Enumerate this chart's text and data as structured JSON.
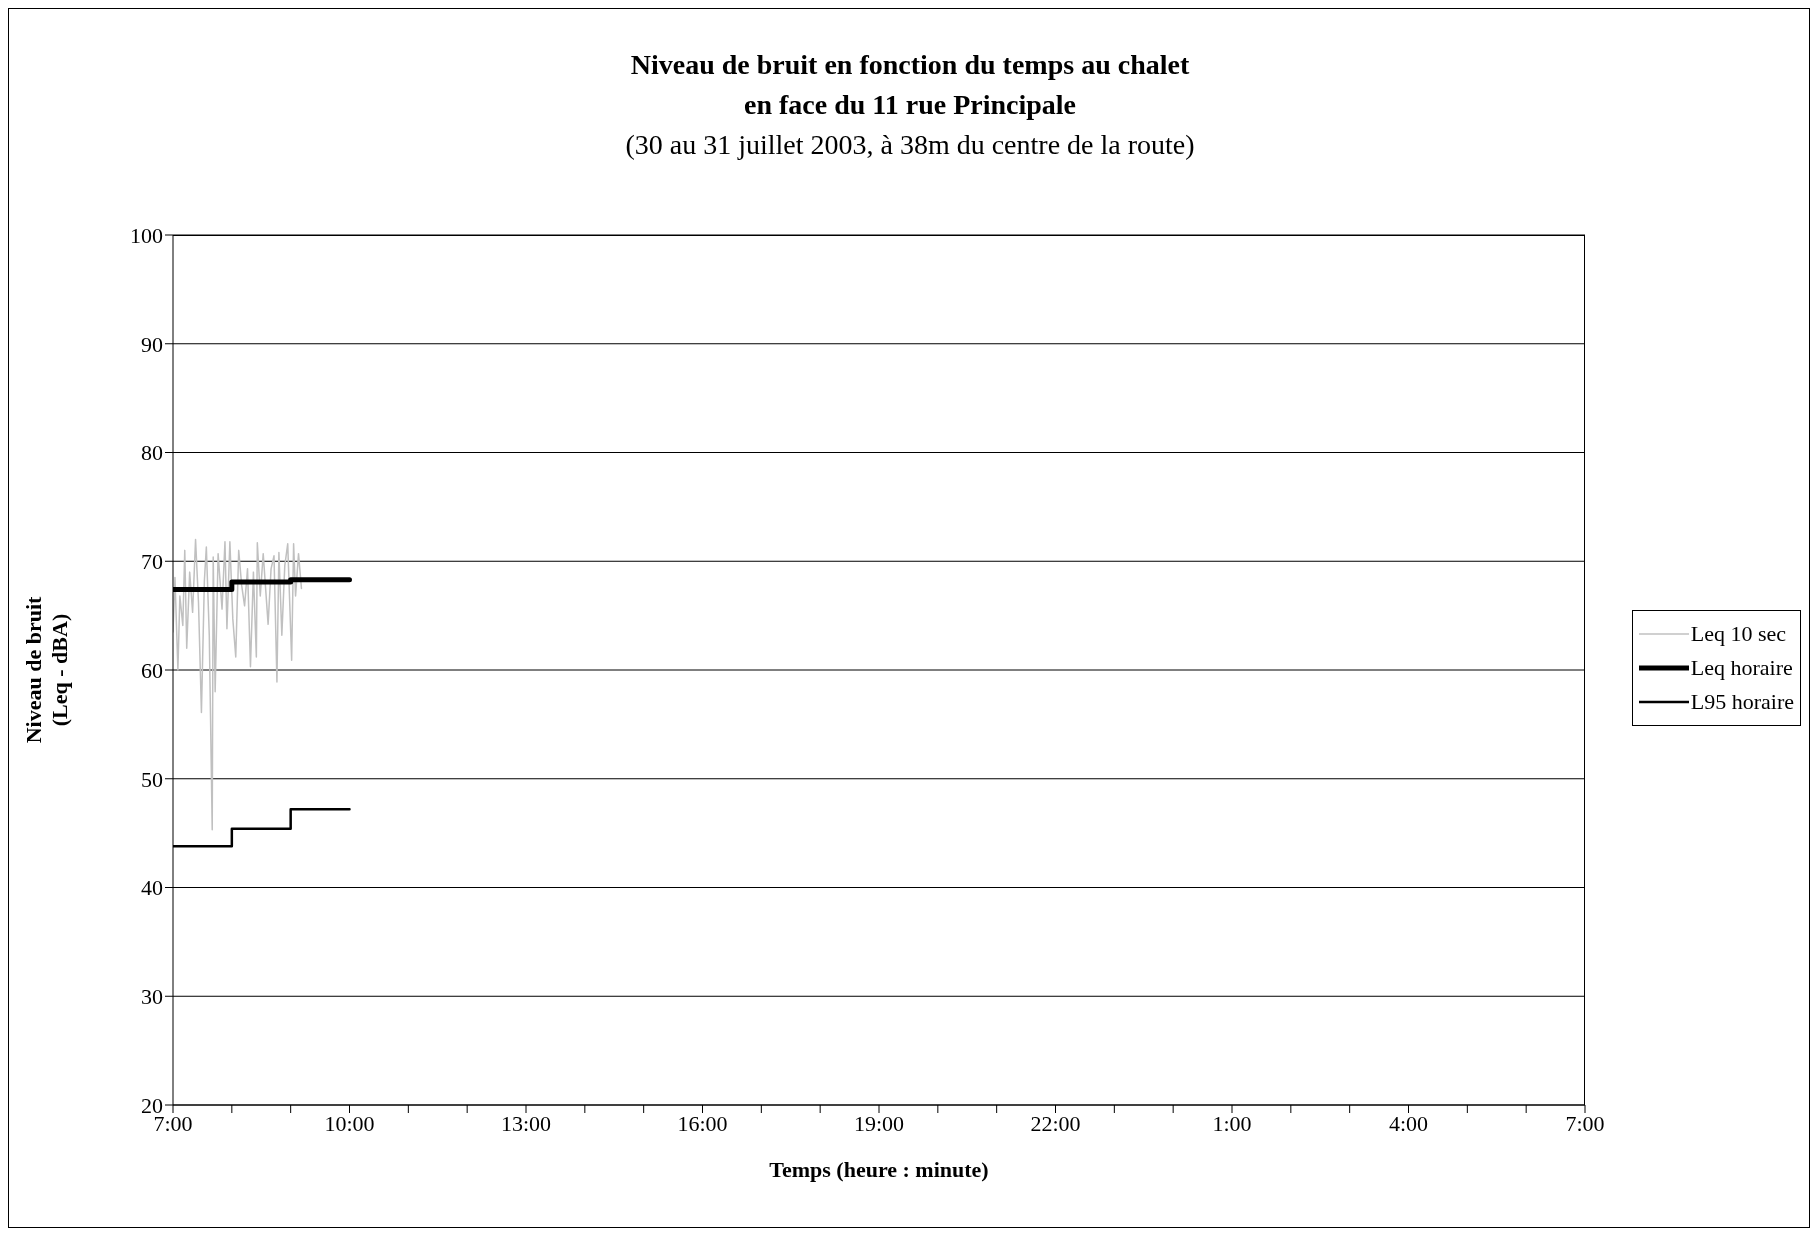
{
  "chart_data": {
    "type": "line",
    "title": "Niveau de bruit en fonction du temps au chalet\nen face du 11 rue Principale",
    "subtitle": "(30 au 31 juillet 2003, à 38m du centre de la route)",
    "xlabel": "Temps (heure : minute)",
    "ylabel": "Niveau de bruit\n(Leq - dBA)",
    "xlim": [
      "2003-07-30T07:00",
      "2003-07-31T07:00"
    ],
    "xticks": [
      {
        "value": "2003-07-30T07:00",
        "label": "7:00"
      },
      {
        "value": "2003-07-30T08:00",
        "label": null
      },
      {
        "value": "2003-07-30T09:00",
        "label": null
      },
      {
        "value": "2003-07-30T10:00",
        "label": "10:00"
      },
      {
        "value": "2003-07-30T11:00",
        "label": null
      },
      {
        "value": "2003-07-30T12:00",
        "label": null
      },
      {
        "value": "2003-07-30T13:00",
        "label": "13:00"
      },
      {
        "value": "2003-07-30T14:00",
        "label": null
      },
      {
        "value": "2003-07-30T15:00",
        "label": null
      },
      {
        "value": "2003-07-30T16:00",
        "label": "16:00"
      },
      {
        "value": "2003-07-30T17:00",
        "label": null
      },
      {
        "value": "2003-07-30T18:00",
        "label": null
      },
      {
        "value": "2003-07-30T19:00",
        "label": "19:00"
      },
      {
        "value": "2003-07-30T20:00",
        "label": null
      },
      {
        "value": "2003-07-30T21:00",
        "label": null
      },
      {
        "value": "2003-07-30T22:00",
        "label": "22:00"
      },
      {
        "value": "2003-07-30T23:00",
        "label": null
      },
      {
        "value": "2003-07-31T00:00",
        "label": null
      },
      {
        "value": "2003-07-31T01:00",
        "label": "1:00"
      },
      {
        "value": "2003-07-31T02:00",
        "label": null
      },
      {
        "value": "2003-07-31T03:00",
        "label": null
      },
      {
        "value": "2003-07-31T04:00",
        "label": "4:00"
      },
      {
        "value": "2003-07-31T05:00",
        "label": null
      },
      {
        "value": "2003-07-31T06:00",
        "label": null
      },
      {
        "value": "2003-07-31T07:00",
        "label": "7:00"
      }
    ],
    "ylim": [
      20,
      100
    ],
    "yticks": [
      20,
      30,
      40,
      50,
      60,
      70,
      80,
      90,
      100
    ],
    "grid": "y",
    "legend": "right",
    "marker": "none",
    "series": [
      {
        "name": "Leq 10 sec",
        "color": "#c0c0c0",
        "x": [
          "2003-07-30T07:00",
          "2003-07-30T07:02",
          "2003-07-30T07:05",
          "2003-07-30T07:07",
          "2003-07-30T07:10",
          "2003-07-30T07:12",
          "2003-07-30T07:14",
          "2003-07-30T07:17",
          "2003-07-30T07:20",
          "2003-07-30T07:23",
          "2003-07-30T07:26",
          "2003-07-30T07:29",
          "2003-07-30T07:32",
          "2003-07-30T07:34",
          "2003-07-30T07:37",
          "2003-07-30T07:40",
          "2003-07-30T07:41",
          "2003-07-30T07:43",
          "2003-07-30T07:46",
          "2003-07-30T07:50",
          "2003-07-30T07:53",
          "2003-07-30T07:55",
          "2003-07-30T07:58",
          "2003-07-30T08:01",
          "2003-07-30T08:04",
          "2003-07-30T08:07",
          "2003-07-30T08:10",
          "2003-07-30T08:13",
          "2003-07-30T08:16",
          "2003-07-30T08:19",
          "2003-07-30T08:22",
          "2003-07-30T08:25",
          "2003-07-30T08:26",
          "2003-07-30T08:29",
          "2003-07-30T08:32",
          "2003-07-30T08:37",
          "2003-07-30T08:40",
          "2003-07-30T08:43",
          "2003-07-30T08:46",
          "2003-07-30T08:48",
          "2003-07-30T08:51",
          "2003-07-30T08:54",
          "2003-07-30T08:57",
          "2003-07-30T09:01",
          "2003-07-30T09:03",
          "2003-07-30T09:05",
          "2003-07-30T09:08",
          "2003-07-30T09:11"
        ],
        "values": [
          63.5,
          68.5,
          60.0,
          66.8,
          64.1,
          71.0,
          62.0,
          69.0,
          65.3,
          72.0,
          66.2,
          56.1,
          68.2,
          71.3,
          63.2,
          45.3,
          70.4,
          58.0,
          70.7,
          65.6,
          71.8,
          63.8,
          71.8,
          64.7,
          61.2,
          71.0,
          67.8,
          65.9,
          69.3,
          60.3,
          69.0,
          61.2,
          71.7,
          66.8,
          70.7,
          64.2,
          69.3,
          70.5,
          58.9,
          70.8,
          63.2,
          69.6,
          71.6,
          60.9,
          71.6,
          66.8,
          70.7,
          67.5
        ]
      },
      {
        "name": "Leq horaire",
        "color": "#000000",
        "type": "step",
        "x": [
          "2003-07-30T07:00",
          "2003-07-30T08:00",
          "2003-07-30T09:00",
          "2003-07-30T10:00"
        ],
        "values": [
          67.4,
          68.1,
          68.3,
          68.3
        ]
      },
      {
        "name": "L95 horaire",
        "color": "#000000",
        "type": "step",
        "x": [
          "2003-07-30T07:00",
          "2003-07-30T08:00",
          "2003-07-30T09:00",
          "2003-07-30T10:00"
        ],
        "values": [
          43.8,
          45.4,
          47.2,
          47.2
        ]
      }
    ]
  }
}
